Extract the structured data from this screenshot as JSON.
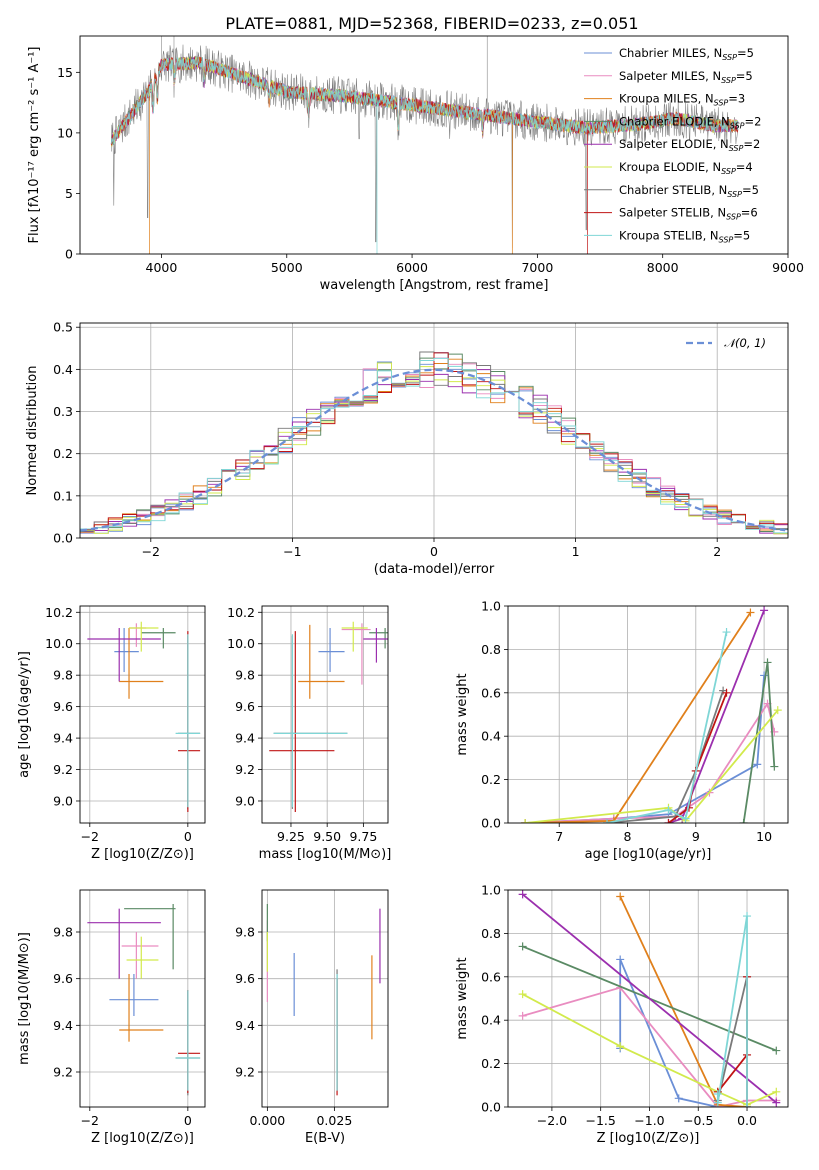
{
  "figure": {
    "title": "PLATE=0881, MJD=52368, FIBERID=0233, z=0.051"
  },
  "colors": {
    "chabrier_miles": "#6b8fd6",
    "salpeter_miles": "#e98cc0",
    "kroupa_miles": "#e0801c",
    "chabrier_elodie": "#5a8a64",
    "salpeter_elodie": "#9b2fae",
    "kroupa_elodie": "#d2ea4c",
    "chabrier_stelib": "#7a7a7a",
    "salpeter_stelib": "#c01414",
    "kroupa_stelib": "#7fd6d6",
    "gaussian": "#6b8fd6",
    "grid": "#b0b0b0"
  },
  "chart_data": [
    {
      "id": "spectrum",
      "type": "line",
      "xlabel": "wavelength [Angstrom, rest frame]",
      "ylabel": "Flux [fλ10⁻¹⁷ erg cm⁻² s⁻¹ A⁻¹]",
      "xlim": [
        3350,
        9000
      ],
      "ylim": [
        0,
        18
      ],
      "xticks": [
        "4000",
        "5000",
        "6000",
        "7000",
        "8000",
        "9000"
      ],
      "yticks": [
        "0",
        "5",
        "10",
        "15"
      ],
      "xtick_values": [
        4000,
        5000,
        6000,
        7000,
        8000,
        9000
      ],
      "ytick_values": [
        0,
        5,
        10,
        15
      ],
      "continuum": [
        [
          3600,
          9.3
        ],
        [
          3900,
          13.5
        ],
        [
          4000,
          15.6
        ],
        [
          4300,
          15.8
        ],
        [
          4600,
          14.8
        ],
        [
          5000,
          13.4
        ],
        [
          5500,
          13.0
        ],
        [
          6000,
          12.3
        ],
        [
          6500,
          11.6
        ],
        [
          7000,
          10.9
        ],
        [
          7400,
          10.4
        ],
        [
          7800,
          10.7
        ],
        [
          8100,
          11.2
        ],
        [
          8400,
          10.6
        ],
        [
          8600,
          10.6
        ]
      ],
      "legend_position": "upper right",
      "legend": [
        {
          "label": "Chabrier MILES, N",
          "sub": "SSP",
          "tail": "=5",
          "color_key": "chabrier_miles"
        },
        {
          "label": "Salpeter MILES, N",
          "sub": "SSP",
          "tail": "=5",
          "color_key": "salpeter_miles"
        },
        {
          "label": "Kroupa MILES, N",
          "sub": "SSP",
          "tail": "=3",
          "color_key": "kroupa_miles"
        },
        {
          "label": "Chabrier ELODIE, N",
          "sub": "SSP",
          "tail": "=2",
          "color_key": "chabrier_elodie"
        },
        {
          "label": "Salpeter ELODIE, N",
          "sub": "SSP",
          "tail": "=2",
          "color_key": "salpeter_elodie"
        },
        {
          "label": "Kroupa ELODIE, N",
          "sub": "SSP",
          "tail": "=4",
          "color_key": "kroupa_elodie"
        },
        {
          "label": "Chabrier STELIB, N",
          "sub": "SSP",
          "tail": "=5",
          "color_key": "chabrier_stelib"
        },
        {
          "label": "Salpeter STELIB, N",
          "sub": "SSP",
          "tail": "=6",
          "color_key": "salpeter_stelib"
        },
        {
          "label": "Kroupa STELIB, N",
          "sub": "SSP",
          "tail": "=5",
          "color_key": "kroupa_stelib"
        }
      ]
    },
    {
      "id": "residuals",
      "type": "histogram",
      "xlabel": "(data-model)/error",
      "ylabel": "Normed distribution",
      "xlim": [
        -2.5,
        2.5
      ],
      "ylim": [
        0,
        0.51
      ],
      "xticks": [
        "−2",
        "−1",
        "0",
        "1",
        "2"
      ],
      "yticks": [
        "0.0",
        "0.1",
        "0.2",
        "0.3",
        "0.4",
        "0.5"
      ],
      "xtick_values": [
        -2,
        -1,
        0,
        1,
        2
      ],
      "ytick_values": [
        0,
        0.1,
        0.2,
        0.3,
        0.4,
        0.5
      ],
      "bin_width": 0.1,
      "legend": [
        {
          "label": "𝒩(0, 1)",
          "color_key": "gaussian"
        }
      ],
      "legend_position": "upper right"
    },
    {
      "id": "age_vs_Z",
      "type": "errorbar",
      "xlabel": "Z [log10(Z/Z⊙)]",
      "ylabel": "age [log10(age/yr)]",
      "xlim": [
        -2.2,
        0.35
      ],
      "ylim": [
        8.86,
        10.24
      ],
      "xticks": [
        "−2",
        "0"
      ],
      "xtick_values": [
        -2,
        0
      ],
      "yticks": [
        "9.0",
        "9.2",
        "9.4",
        "9.6",
        "9.8",
        "10.0",
        "10.2"
      ],
      "ytick_values": [
        9.0,
        9.2,
        9.4,
        9.6,
        9.8,
        10.0,
        10.2
      ],
      "points": [
        {
          "c": "chabrier_miles",
          "x": -1.3,
          "xl": -1.5,
          "xh": -1.0,
          "y": 9.95,
          "yl": 9.82,
          "yh": 10.1
        },
        {
          "c": "salpeter_miles",
          "x": -1.05,
          "xl": -1.2,
          "xh": -0.85,
          "y": 10.1,
          "yl": 9.98,
          "yh": 10.13
        },
        {
          "c": "kroupa_miles",
          "x": -1.2,
          "xl": -1.4,
          "xh": -0.5,
          "y": 9.76,
          "yl": 9.65,
          "yh": 10.1
        },
        {
          "c": "chabrier_elodie",
          "x": -0.5,
          "xl": -0.95,
          "xh": -0.25,
          "y": 10.07,
          "yl": 9.97,
          "yh": 10.1
        },
        {
          "c": "salpeter_elodie",
          "x": -1.4,
          "xl": -2.05,
          "xh": -0.55,
          "y": 10.03,
          "yl": 9.76,
          "yh": 10.1
        },
        {
          "c": "kroupa_elodie",
          "x": -0.95,
          "xl": -1.2,
          "xh": -0.6,
          "y": 10.1,
          "yl": 9.95,
          "yh": 10.14
        },
        {
          "c": "chabrier_stelib",
          "x": 0.0,
          "xl": -0.2,
          "xh": 0.25,
          "y": 9.43,
          "yl": 8.95,
          "yh": 10.05
        },
        {
          "c": "salpeter_stelib",
          "x": 0.0,
          "xl": -0.2,
          "xh": 0.25,
          "y": 9.32,
          "yl": 8.93,
          "yh": 10.08
        },
        {
          "c": "kroupa_stelib",
          "x": 0.0,
          "xl": -0.25,
          "xh": 0.25,
          "y": 9.43,
          "yl": 8.96,
          "yh": 10.06
        }
      ]
    },
    {
      "id": "age_vs_mass",
      "type": "errorbar",
      "xlabel": "mass [log10(M/M⊙)]",
      "ylabel": "",
      "xlim": [
        9.05,
        9.92
      ],
      "ylim": [
        8.86,
        10.24
      ],
      "xticks": [
        "9.25",
        "9.50",
        "9.75"
      ],
      "xtick_values": [
        9.25,
        9.5,
        9.75
      ],
      "yticks": [
        "9.0",
        "9.2",
        "9.4",
        "9.6",
        "9.8",
        "10.0",
        "10.2"
      ],
      "ytick_values": [
        9.0,
        9.2,
        9.4,
        9.6,
        9.8,
        10.0,
        10.2
      ],
      "points": [
        {
          "c": "chabrier_miles",
          "x": 9.52,
          "xl": 9.44,
          "xh": 9.62,
          "y": 9.95,
          "yl": 9.82,
          "yh": 10.1
        },
        {
          "c": "salpeter_miles",
          "x": 9.74,
          "xl": 9.6,
          "xh": 9.8,
          "y": 10.09,
          "yl": 9.74,
          "yh": 10.13
        },
        {
          "c": "kroupa_miles",
          "x": 9.38,
          "xl": 9.3,
          "xh": 9.62,
          "y": 9.76,
          "yl": 9.65,
          "yh": 10.12
        },
        {
          "c": "chabrier_elodie",
          "x": 9.9,
          "xl": 9.79,
          "xh": 9.94,
          "y": 10.07,
          "yl": 9.97,
          "yh": 10.1
        },
        {
          "c": "salpeter_elodie",
          "x": 9.84,
          "xl": 9.75,
          "xh": 9.94,
          "y": 10.03,
          "yl": 9.88,
          "yh": 10.1
        },
        {
          "c": "kroupa_elodie",
          "x": 9.68,
          "xl": 9.6,
          "xh": 9.78,
          "y": 10.1,
          "yl": 9.95,
          "yh": 10.14
        },
        {
          "c": "chabrier_stelib",
          "x": 9.26,
          "xl": 9.13,
          "xh": 9.64,
          "y": 9.43,
          "yl": 8.95,
          "yh": 10.05
        },
        {
          "c": "salpeter_stelib",
          "x": 9.28,
          "xl": 9.1,
          "xh": 9.55,
          "y": 9.32,
          "yl": 8.93,
          "yh": 10.08
        },
        {
          "c": "kroupa_stelib",
          "x": 9.26,
          "xl": 9.13,
          "xh": 9.64,
          "y": 9.43,
          "yl": 8.96,
          "yh": 10.06
        }
      ]
    },
    {
      "id": "weight_vs_age",
      "type": "line",
      "xlabel": "age [log10(age/yr)]",
      "ylabel": "mass weight",
      "xlim": [
        6.25,
        10.35
      ],
      "ylim": [
        0,
        1.0
      ],
      "xticks": [
        "7",
        "8",
        "9",
        "10"
      ],
      "xtick_values": [
        7,
        8,
        9,
        10
      ],
      "yticks": [
        "0.0",
        "0.2",
        "0.4",
        "0.6",
        "0.8",
        "1.0"
      ],
      "ytick_values": [
        0,
        0.2,
        0.4,
        0.6,
        0.8,
        1.0
      ],
      "series": [
        {
          "c": "chabrier_miles",
          "x": [
            6.5,
            7.8,
            8.6,
            9.9,
            10.0
          ],
          "y": [
            0.0,
            0.02,
            0.04,
            0.27,
            0.68
          ]
        },
        {
          "c": "salpeter_miles",
          "x": [
            6.5,
            7.8,
            8.7,
            9.2,
            10.05,
            10.15
          ],
          "y": [
            0.0,
            0.02,
            0.03,
            0.14,
            0.55,
            0.42
          ]
        },
        {
          "c": "kroupa_miles",
          "x": [
            6.5,
            7.8,
            9.8
          ],
          "y": [
            0.0,
            0.01,
            0.97
          ]
        },
        {
          "c": "chabrier_elodie",
          "x": [
            9.7,
            10.05,
            10.15
          ],
          "y": [
            0.0,
            0.74,
            0.26
          ]
        },
        {
          "c": "salpeter_elodie",
          "x": [
            8.6,
            8.8,
            10.0
          ],
          "y": [
            0.0,
            0.02,
            0.98
          ]
        },
        {
          "c": "kroupa_elodie",
          "x": [
            6.5,
            8.6,
            8.85,
            10.2
          ],
          "y": [
            0.0,
            0.07,
            0.01,
            0.52
          ]
        },
        {
          "c": "chabrier_stelib",
          "x": [
            7.7,
            8.7,
            9.0,
            9.4
          ],
          "y": [
            0.0,
            0.03,
            0.24,
            0.61
          ]
        },
        {
          "c": "salpeter_stelib",
          "x": [
            8.6,
            8.9,
            9.0,
            9.45
          ],
          "y": [
            0.0,
            0.07,
            0.24,
            0.6
          ]
        },
        {
          "c": "kroupa_stelib",
          "x": [
            7.7,
            8.6,
            8.85,
            9.45
          ],
          "y": [
            0.0,
            0.06,
            0.02,
            0.88
          ]
        }
      ]
    },
    {
      "id": "mass_vs_Z",
      "type": "errorbar",
      "xlabel": "Z [log10(Z/Z⊙)]",
      "ylabel": "mass [log10(M/M⊙)]",
      "xlim": [
        -2.2,
        0.35
      ],
      "ylim": [
        9.05,
        9.98
      ],
      "xticks": [
        "−2",
        "0"
      ],
      "xtick_values": [
        -2,
        0
      ],
      "yticks": [
        "9.2",
        "9.4",
        "9.6",
        "9.8"
      ],
      "ytick_values": [
        9.2,
        9.4,
        9.6,
        9.8
      ],
      "points": [
        {
          "c": "chabrier_miles",
          "x": -1.1,
          "xl": -1.6,
          "xh": -0.6,
          "y": 9.51,
          "yl": 9.44,
          "yh": 9.62
        },
        {
          "c": "salpeter_miles",
          "x": -1.05,
          "xl": -1.35,
          "xh": -0.6,
          "y": 9.74,
          "yl": 9.6,
          "yh": 9.8
        },
        {
          "c": "kroupa_miles",
          "x": -1.2,
          "xl": -1.4,
          "xh": -0.5,
          "y": 9.38,
          "yl": 9.33,
          "yh": 9.62
        },
        {
          "c": "chabrier_elodie",
          "x": -0.3,
          "xl": -1.3,
          "xh": -0.25,
          "y": 9.9,
          "yl": 9.64,
          "yh": 9.92
        },
        {
          "c": "salpeter_elodie",
          "x": -1.4,
          "xl": -2.05,
          "xh": -0.55,
          "y": 9.84,
          "yl": 9.6,
          "yh": 9.9
        },
        {
          "c": "kroupa_elodie",
          "x": -0.95,
          "xl": -1.25,
          "xh": -0.6,
          "y": 9.68,
          "yl": 9.6,
          "yh": 9.78
        },
        {
          "c": "chabrier_stelib",
          "x": 0.0,
          "xl": -0.25,
          "xh": 0.25,
          "y": 9.26,
          "yl": 9.1,
          "yh": 9.55
        },
        {
          "c": "salpeter_stelib",
          "x": 0.0,
          "xl": -0.2,
          "xh": 0.25,
          "y": 9.28,
          "yl": 9.11,
          "yh": 9.55
        },
        {
          "c": "kroupa_stelib",
          "x": 0.0,
          "xl": -0.25,
          "xh": 0.25,
          "y": 9.26,
          "yl": 9.12,
          "yh": 9.55
        }
      ]
    },
    {
      "id": "mass_vs_ebv",
      "type": "errorbar",
      "xlabel": "E(B-V)",
      "ylabel": "",
      "xlim": [
        -0.002,
        0.045
      ],
      "ylim": [
        9.05,
        9.98
      ],
      "xticks": [
        "0.000",
        "0.025"
      ],
      "xtick_values": [
        0.0,
        0.025
      ],
      "yticks": [
        "9.2",
        "9.4",
        "9.6",
        "9.8"
      ],
      "ytick_values": [
        9.2,
        9.4,
        9.6,
        9.8
      ],
      "points": [
        {
          "c": "chabrier_miles",
          "x": 0.01,
          "y": 9.58,
          "yl": 9.44,
          "yh": 9.71
        },
        {
          "c": "salpeter_miles",
          "x": 0.0,
          "y": 9.74,
          "yl": 9.5,
          "yh": 9.85
        },
        {
          "c": "kroupa_miles",
          "x": 0.039,
          "y": 9.55,
          "yl": 9.34,
          "yh": 9.7
        },
        {
          "c": "chabrier_elodie",
          "x": 0.0,
          "y": 9.88,
          "yl": 9.76,
          "yh": 9.92
        },
        {
          "c": "salpeter_elodie",
          "x": 0.042,
          "y": 9.78,
          "yl": 9.58,
          "yh": 9.9
        },
        {
          "c": "kroupa_elodie",
          "x": 0.0,
          "y": 9.7,
          "yl": 9.63,
          "yh": 9.8
        },
        {
          "c": "chabrier_stelib",
          "x": 0.026,
          "y": 9.3,
          "yl": 9.12,
          "yh": 9.64
        },
        {
          "c": "salpeter_stelib",
          "x": 0.026,
          "y": 9.28,
          "yl": 9.1,
          "yh": 9.6
        },
        {
          "c": "kroupa_stelib",
          "x": 0.026,
          "y": 9.3,
          "yl": 9.12,
          "yh": 9.62
        }
      ]
    },
    {
      "id": "weight_vs_Z",
      "type": "line",
      "xlabel": "Z [log10(Z/Z⊙)]",
      "ylabel": "mass weight",
      "xlim": [
        -2.45,
        0.42
      ],
      "ylim": [
        0,
        1.0
      ],
      "xticks": [
        "−2.0",
        "−1.5",
        "−1.0",
        "−0.5",
        "0.0"
      ],
      "xtick_values": [
        -2.0,
        -1.5,
        -1.0,
        -0.5,
        0.0
      ],
      "yticks": [
        "0.0",
        "0.2",
        "0.4",
        "0.6",
        "0.8",
        "1.0"
      ],
      "ytick_values": [
        0,
        0.2,
        0.4,
        0.6,
        0.8,
        1.0
      ],
      "series": [
        {
          "c": "chabrier_miles",
          "x": [
            -1.3,
            -1.3,
            -0.7,
            -0.3,
            0.0
          ],
          "y": [
            0.27,
            0.68,
            0.04,
            0.0,
            0.0
          ]
        },
        {
          "c": "salpeter_miles",
          "x": [
            -2.3,
            -1.3,
            -0.3,
            0.0,
            0.3
          ],
          "y": [
            0.42,
            0.55,
            0.0,
            0.03,
            0.03
          ]
        },
        {
          "c": "kroupa_miles",
          "x": [
            -1.3,
            -0.3,
            0.0
          ],
          "y": [
            0.97,
            0.01,
            0.0
          ]
        },
        {
          "c": "chabrier_elodie",
          "x": [
            -2.3,
            0.3
          ],
          "y": [
            0.74,
            0.26
          ]
        },
        {
          "c": "salpeter_elodie",
          "x": [
            -2.3,
            0.3
          ],
          "y": [
            0.98,
            0.02
          ]
        },
        {
          "c": "kroupa_elodie",
          "x": [
            -2.3,
            -1.3,
            -0.3,
            0.0,
            0.3
          ],
          "y": [
            0.52,
            0.28,
            0.07,
            0.01,
            0.07
          ]
        },
        {
          "c": "chabrier_stelib",
          "x": [
            -0.3,
            0.0,
            0.0
          ],
          "y": [
            0.03,
            0.6,
            0.24
          ]
        },
        {
          "c": "salpeter_stelib",
          "x": [
            -0.3,
            0.0,
            0.0,
            0.0
          ],
          "y": [
            0.07,
            0.24,
            0.6,
            0.0
          ]
        },
        {
          "c": "kroupa_stelib",
          "x": [
            -0.3,
            -0.3,
            0.0,
            0.0
          ],
          "y": [
            0.06,
            0.02,
            0.88,
            0.0
          ]
        }
      ]
    }
  ]
}
